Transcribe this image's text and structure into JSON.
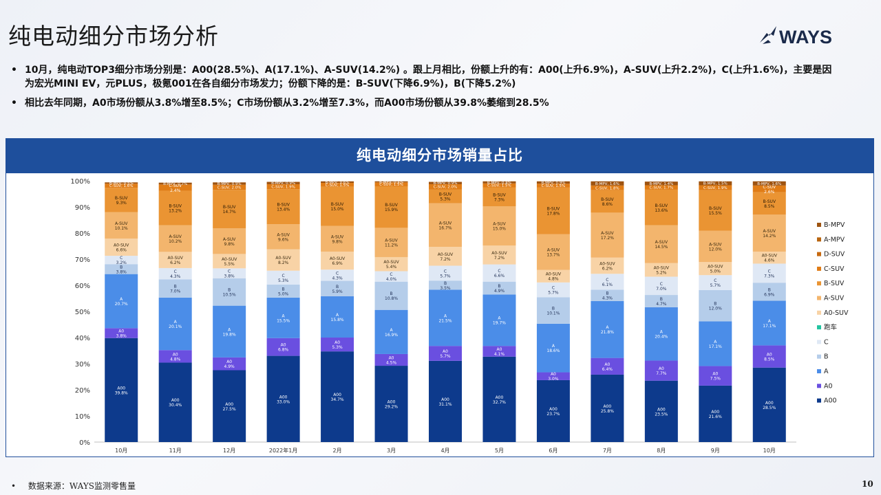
{
  "page": {
    "title": "纯电动细分市场分析",
    "logo_text": "WAYS",
    "bullets": [
      "10月，纯电动TOP3细分市场分别是：A00(28.5%)、A(17.1%)、A-SUV(14.2%) 。跟上月相比，份额上升的有：A00(上升6.9%)，A-SUV(上升2.2%)，C(上升1.6%)，主要是因为宏光MINI EV，元PLUS，极氪001在各自细分市场发力；份额下降的是：B-SUV(下降6.9%)，B(下降5.2%)",
      "相比去年同期，A0市场份额从3.8%增至8.5%；C市场份额从3.2%增至7.3%，而A00市场份额从39.8%萎缩到28.5%"
    ],
    "bullet_symbol": "•",
    "footer_symbol": "•",
    "footer": "数据来源：WAYS监测零售量",
    "page_number": "10"
  },
  "chart_data": {
    "type": "bar",
    "stacked": true,
    "title": "纯电动细分市场销量占比",
    "categories": [
      "10月",
      "11月",
      "12月",
      "2022年1月",
      "2月",
      "3月",
      "4月",
      "5月",
      "6月",
      "7月",
      "8月",
      "9月",
      "10月"
    ],
    "ylim": [
      0,
      100
    ],
    "yticks": [
      "0%",
      "10%",
      "20%",
      "30%",
      "40%",
      "50%",
      "60%",
      "70%",
      "80%",
      "90%",
      "100%"
    ],
    "legend_position": "right",
    "series": [
      {
        "name": "A00",
        "color": "#0d3a8c",
        "text_color": "#ffffff",
        "values": [
          39.8,
          30.4,
          27.5,
          33.0,
          34.7,
          29.2,
          31.1,
          32.7,
          23.7,
          25.8,
          23.5,
          21.6,
          28.5
        ]
      },
      {
        "name": "A0",
        "color": "#6a4fe0",
        "text_color": "#ffffff",
        "values": [
          3.8,
          4.8,
          4.9,
          6.8,
          5.3,
          4.5,
          5.7,
          4.1,
          3.0,
          6.4,
          7.7,
          7.5,
          8.5
        ]
      },
      {
        "name": "A",
        "color": "#4b8de8",
        "text_color": "#ffffff",
        "values": [
          20.7,
          20.1,
          19.8,
          15.5,
          15.8,
          16.9,
          21.5,
          19.7,
          18.6,
          21.8,
          20.4,
          17.1,
          17.1
        ]
      },
      {
        "name": "B",
        "color": "#b5cdea",
        "text_color": "#1f2f55",
        "values": [
          3.8,
          7.0,
          10.5,
          5.0,
          5.9,
          10.8,
          3.5,
          4.9,
          10.1,
          4.3,
          4.7,
          12.0,
          6.9
        ]
      },
      {
        "name": "C",
        "color": "#dfe8f5",
        "text_color": "#1f2f55",
        "values": [
          3.2,
          4.3,
          3.8,
          5.3,
          4.3,
          4.0,
          5.7,
          6.6,
          5.7,
          6.1,
          7.0,
          5.7,
          7.3
        ]
      },
      {
        "name": "跑车",
        "color": "#22c4a0",
        "text_color": "#1f2f55",
        "values": [
          0,
          0,
          0,
          0,
          0,
          0,
          0,
          0,
          0,
          0,
          0,
          0,
          0
        ]
      },
      {
        "name": "A0-SUV",
        "color": "#f8d3a6",
        "text_color": "#3a2a10",
        "values": [
          6.6,
          6.2,
          5.5,
          8.2,
          6.9,
          5.4,
          7.2,
          7.2,
          4.8,
          6.2,
          5.2,
          5.0,
          4.6
        ]
      },
      {
        "name": "A-SUV",
        "color": "#f3b56d",
        "text_color": "#3a2a10",
        "values": [
          10.1,
          10.2,
          9.8,
          9.6,
          9.8,
          11.2,
          16.7,
          15.0,
          13.7,
          17.2,
          14.5,
          12.0,
          14.2
        ]
      },
      {
        "name": "B-SUV",
        "color": "#ea9433",
        "text_color": "#2a1a05",
        "values": [
          9.3,
          13.2,
          14.7,
          13.4,
          15.0,
          15.9,
          5.3,
          7.3,
          17.8,
          8.6,
          13.6,
          15.5,
          8.5
        ]
      },
      {
        "name": "C-SUV",
        "color": "#e07c16",
        "text_color": "#ffffff",
        "values": [
          1.6,
          2.4,
          2.0,
          1.9,
          1.5,
          1.5,
          2.0,
          1.5,
          1.5,
          1.8,
          1.7,
          1.9,
          2.6
        ]
      },
      {
        "name": "D-SUV",
        "color": "#c7690f",
        "text_color": "#ffffff",
        "values": [
          0,
          0,
          0,
          0,
          0,
          0,
          0,
          0,
          0,
          0,
          0,
          0,
          0
        ]
      },
      {
        "name": "A-MPV",
        "color": "#b8650f",
        "text_color": "#ffffff",
        "values": [
          0,
          0,
          0,
          0,
          0,
          0,
          0,
          0,
          0,
          0,
          0,
          0,
          0
        ]
      },
      {
        "name": "B-MPV",
        "color": "#9e5310",
        "text_color": "#ffffff",
        "values": [
          0.5,
          0.7,
          0.9,
          0.9,
          0.6,
          0.4,
          0.9,
          0.8,
          0.9,
          1.6,
          1.4,
          1.5,
          1.6
        ]
      }
    ]
  }
}
